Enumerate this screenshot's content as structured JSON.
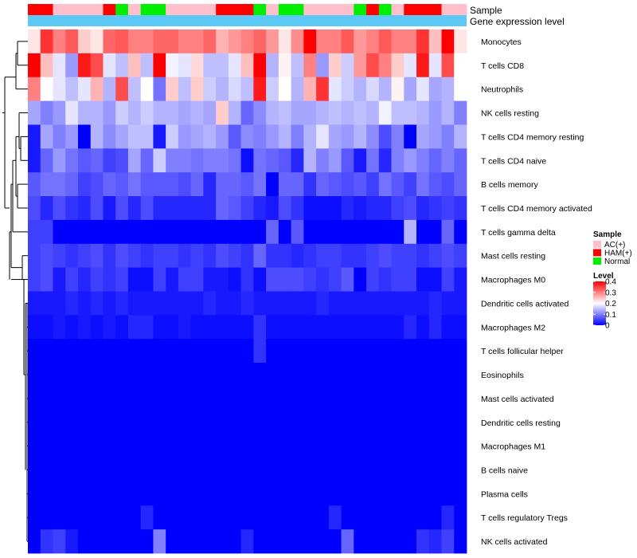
{
  "chart_data": {
    "type": "heatmap",
    "title": "",
    "annotation_labels": {
      "sample": "Sample",
      "expression": "Gene expression level"
    },
    "row_labels": [
      "Monocytes",
      "T cells CD8",
      "Neutrophils",
      "NK cells resting",
      "T cells CD4 memory resting",
      "T cells CD4 naive",
      "B cells memory",
      "T cells CD4 memory activated",
      "T cells gamma delta",
      "Mast cells resting",
      "Macrophages M0",
      "Dendritic cells activated",
      "Macrophages M2",
      "T cells follicular helper",
      "Eosinophils",
      "Mast cells activated",
      "Dendritic cells resting",
      "Macrophages M1",
      "B cells naive",
      "Plasma cells",
      "T cells regulatory  Tregs",
      "NK cells activated"
    ],
    "sample_groups": [
      "HAM(+)",
      "HAM(+)",
      "AC(+)",
      "AC(+)",
      "AC(+)",
      "AC(+)",
      "HAM(+)",
      "Normal",
      "AC(+)",
      "Normal",
      "Normal",
      "AC(+)",
      "AC(+)",
      "AC(+)",
      "AC(+)",
      "HAM(+)",
      "HAM(+)",
      "HAM(+)",
      "Normal",
      "AC(+)",
      "Normal",
      "Normal",
      "AC(+)",
      "AC(+)",
      "AC(+)",
      "AC(+)",
      "Normal",
      "HAM(+)",
      "Normal",
      "AC(+)",
      "HAM(+)",
      "HAM(+)",
      "HAM(+)",
      "AC(+)",
      "AC(+)"
    ],
    "expression_bar_color": "#5bc8f5",
    "values": [
      [
        0.22,
        0.36,
        0.3,
        0.33,
        0.24,
        0.22,
        0.32,
        0.33,
        0.3,
        0.3,
        0.32,
        0.32,
        0.3,
        0.3,
        0.32,
        0.26,
        0.28,
        0.3,
        0.32,
        0.28,
        0.22,
        0.29,
        0.4,
        0.3,
        0.3,
        0.33,
        0.28,
        0.3,
        0.33,
        0.3,
        0.3,
        0.36,
        0.25,
        0.4,
        0.22
      ],
      [
        0.4,
        0.25,
        0.18,
        0.12,
        0.38,
        0.34,
        0.18,
        0.15,
        0.25,
        0.15,
        0.4,
        0.19,
        0.18,
        0.23,
        0.15,
        0.15,
        0.18,
        0.25,
        0.4,
        0.14,
        0.21,
        0.15,
        0.3,
        0.12,
        0.24,
        0.16,
        0.28,
        0.34,
        0.3,
        0.24,
        0.18,
        0.38,
        0.18,
        0.34,
        0.2
      ],
      [
        0.3,
        0.2,
        0.18,
        0.15,
        0.18,
        0.26,
        0.14,
        0.34,
        0.15,
        0.2,
        0.09,
        0.24,
        0.15,
        0.24,
        0.16,
        0.14,
        0.17,
        0.15,
        0.38,
        0.16,
        0.2,
        0.14,
        0.26,
        0.36,
        0.18,
        0.16,
        0.14,
        0.17,
        0.14,
        0.21,
        0.13,
        0.18,
        0.13,
        0.14,
        0.2
      ],
      [
        0.13,
        0.1,
        0.12,
        0.18,
        0.14,
        0.14,
        0.12,
        0.16,
        0.14,
        0.16,
        0.14,
        0.14,
        0.13,
        0.14,
        0.13,
        0.24,
        0.14,
        0.08,
        0.11,
        0.14,
        0.15,
        0.13,
        0.13,
        0.14,
        0.15,
        0.14,
        0.15,
        0.14,
        0.19,
        0.15,
        0.15,
        0.14,
        0.12,
        0.14,
        0.1
      ],
      [
        0.02,
        0.13,
        0.1,
        0.12,
        0.0,
        0.14,
        0.11,
        0.13,
        0.15,
        0.15,
        0.02,
        0.16,
        0.12,
        0.13,
        0.14,
        0.12,
        0.07,
        0.11,
        0.1,
        0.12,
        0.14,
        0.1,
        0.14,
        0.18,
        0.13,
        0.12,
        0.14,
        0.11,
        0.06,
        0.1,
        0.0,
        0.13,
        0.12,
        0.1,
        0.14
      ],
      [
        0.02,
        0.08,
        0.12,
        0.09,
        0.07,
        0.08,
        0.05,
        0.06,
        0.13,
        0.08,
        0.16,
        0.1,
        0.1,
        0.09,
        0.1,
        0.1,
        0.09,
        0.01,
        0.09,
        0.08,
        0.07,
        0.03,
        0.14,
        0.1,
        0.12,
        0.07,
        0.02,
        0.09,
        0.03,
        0.1,
        0.12,
        0.1,
        0.08,
        0.1,
        0.08
      ],
      [
        0.07,
        0.09,
        0.09,
        0.08,
        0.05,
        0.06,
        0.08,
        0.07,
        0.09,
        0.07,
        0.07,
        0.07,
        0.06,
        0.08,
        0.03,
        0.08,
        0.08,
        0.07,
        0.09,
        0.0,
        0.08,
        0.08,
        0.04,
        0.08,
        0.07,
        0.06,
        0.07,
        0.05,
        0.09,
        0.07,
        0.05,
        0.09,
        0.07,
        0.06,
        0.08
      ],
      [
        0.06,
        0.03,
        0.06,
        0.04,
        0.03,
        0.06,
        0.02,
        0.06,
        0.03,
        0.06,
        0.03,
        0.03,
        0.03,
        0.03,
        0.03,
        0.08,
        0.07,
        0.05,
        0.03,
        0.02,
        0.06,
        0.04,
        0.01,
        0.01,
        0.01,
        0.03,
        0.02,
        0.03,
        0.03,
        0.05,
        0.06,
        0.03,
        0.04,
        0.05,
        0.04
      ],
      [
        0.05,
        0.05,
        0.0,
        0.0,
        0.0,
        0.0,
        0.0,
        0.0,
        0.0,
        0.0,
        0.0,
        0.0,
        0.0,
        0.0,
        0.0,
        0.0,
        0.0,
        0.0,
        0.0,
        0.08,
        0.0,
        0.07,
        0.0,
        0.0,
        0.0,
        0.0,
        0.0,
        0.0,
        0.0,
        0.0,
        0.14,
        0.0,
        0.0,
        0.08,
        0.0
      ],
      [
        0.05,
        0.06,
        0.05,
        0.04,
        0.05,
        0.06,
        0.04,
        0.06,
        0.05,
        0.04,
        0.05,
        0.05,
        0.04,
        0.05,
        0.04,
        0.06,
        0.05,
        0.04,
        0.08,
        0.04,
        0.04,
        0.03,
        0.04,
        0.05,
        0.05,
        0.04,
        0.04,
        0.05,
        0.06,
        0.05,
        0.05,
        0.04,
        0.05,
        0.06,
        0.05
      ],
      [
        0.05,
        0.06,
        0.02,
        0.05,
        0.03,
        0.05,
        0.04,
        0.05,
        0.01,
        0.01,
        0.05,
        0.02,
        0.05,
        0.05,
        0.02,
        0.02,
        0.01,
        0.04,
        0.01,
        0.06,
        0.06,
        0.06,
        0.05,
        0.04,
        0.05,
        0.07,
        0.0,
        0.05,
        0.04,
        0.05,
        0.05,
        0.01,
        0.01,
        0.05,
        0.02
      ],
      [
        0.02,
        0.02,
        0.02,
        0.03,
        0.02,
        0.03,
        0.02,
        0.03,
        0.02,
        0.02,
        0.02,
        0.02,
        0.02,
        0.02,
        0.03,
        0.02,
        0.02,
        0.03,
        0.02,
        0.02,
        0.02,
        0.02,
        0.02,
        0.03,
        0.02,
        0.02,
        0.02,
        0.02,
        0.02,
        0.02,
        0.02,
        0.02,
        0.03,
        0.02,
        0.02
      ],
      [
        0.01,
        0.01,
        0.02,
        0.01,
        0.02,
        0.01,
        0.02,
        0.01,
        0.03,
        0.03,
        0.01,
        0.01,
        0.02,
        0.01,
        0.01,
        0.01,
        0.01,
        0.01,
        0.04,
        0.01,
        0.01,
        0.01,
        0.01,
        0.01,
        0.01,
        0.01,
        0.01,
        0.01,
        0.01,
        0.01,
        0.03,
        0.01,
        0.03,
        0.01,
        0.01
      ],
      [
        0.0,
        0.0,
        0.0,
        0.0,
        0.0,
        0.0,
        0.0,
        0.0,
        0.0,
        0.0,
        0.0,
        0.0,
        0.0,
        0.0,
        0.0,
        0.0,
        0.0,
        0.0,
        0.04,
        0.0,
        0.0,
        0.0,
        0.0,
        0.0,
        0.0,
        0.0,
        0.0,
        0.0,
        0.0,
        0.0,
        0.0,
        0.0,
        0.0,
        0.0,
        0.0
      ],
      [
        0.0,
        0.0,
        0.0,
        0.0,
        0.0,
        0.0,
        0.0,
        0.0,
        0.0,
        0.0,
        0.0,
        0.0,
        0.0,
        0.0,
        0.0,
        0.0,
        0.0,
        0.0,
        0.0,
        0.0,
        0.0,
        0.0,
        0.0,
        0.0,
        0.0,
        0.0,
        0.0,
        0.0,
        0.0,
        0.0,
        0.0,
        0.0,
        0.0,
        0.0,
        0.0
      ],
      [
        0.0,
        0.0,
        0.0,
        0.0,
        0.0,
        0.0,
        0.0,
        0.0,
        0.0,
        0.0,
        0.0,
        0.0,
        0.0,
        0.0,
        0.0,
        0.0,
        0.0,
        0.0,
        0.0,
        0.0,
        0.0,
        0.0,
        0.0,
        0.0,
        0.0,
        0.0,
        0.0,
        0.0,
        0.0,
        0.0,
        0.0,
        0.0,
        0.0,
        0.0,
        0.0
      ],
      [
        0.0,
        0.0,
        0.0,
        0.0,
        0.0,
        0.0,
        0.0,
        0.0,
        0.0,
        0.0,
        0.0,
        0.0,
        0.0,
        0.0,
        0.0,
        0.0,
        0.0,
        0.0,
        0.0,
        0.0,
        0.0,
        0.0,
        0.0,
        0.0,
        0.0,
        0.0,
        0.0,
        0.0,
        0.0,
        0.0,
        0.0,
        0.0,
        0.0,
        0.0,
        0.0
      ],
      [
        0.0,
        0.0,
        0.0,
        0.0,
        0.0,
        0.0,
        0.0,
        0.0,
        0.0,
        0.0,
        0.0,
        0.0,
        0.0,
        0.0,
        0.0,
        0.0,
        0.0,
        0.0,
        0.0,
        0.0,
        0.0,
        0.0,
        0.0,
        0.0,
        0.0,
        0.0,
        0.0,
        0.0,
        0.0,
        0.0,
        0.0,
        0.0,
        0.0,
        0.0,
        0.0
      ],
      [
        0.0,
        0.0,
        0.0,
        0.0,
        0.0,
        0.0,
        0.0,
        0.0,
        0.0,
        0.0,
        0.0,
        0.0,
        0.0,
        0.0,
        0.0,
        0.0,
        0.0,
        0.0,
        0.0,
        0.0,
        0.0,
        0.0,
        0.0,
        0.0,
        0.0,
        0.0,
        0.0,
        0.0,
        0.0,
        0.0,
        0.0,
        0.0,
        0.0,
        0.0,
        0.0
      ],
      [
        0.0,
        0.0,
        0.0,
        0.0,
        0.0,
        0.0,
        0.0,
        0.0,
        0.0,
        0.0,
        0.0,
        0.0,
        0.0,
        0.0,
        0.0,
        0.0,
        0.0,
        0.0,
        0.0,
        0.0,
        0.0,
        0.0,
        0.0,
        0.0,
        0.0,
        0.0,
        0.0,
        0.0,
        0.0,
        0.0,
        0.0,
        0.0,
        0.0,
        0.0,
        0.0
      ],
      [
        0.0,
        0.0,
        0.0,
        0.0,
        0.0,
        0.0,
        0.0,
        0.0,
        0.0,
        0.03,
        0.0,
        0.0,
        0.0,
        0.0,
        0.0,
        0.0,
        0.0,
        0.0,
        0.0,
        0.0,
        0.0,
        0.0,
        0.0,
        0.0,
        0.03,
        0.0,
        0.0,
        0.0,
        0.0,
        0.0,
        0.0,
        0.0,
        0.0,
        0.03,
        0.0
      ],
      [
        0.0,
        0.04,
        0.05,
        0.02,
        0.0,
        0.0,
        0.0,
        0.0,
        0.0,
        0.0,
        0.1,
        0.0,
        0.0,
        0.0,
        0.0,
        0.0,
        0.0,
        0.03,
        0.0,
        0.0,
        0.0,
        0.0,
        0.0,
        0.0,
        0.0,
        0.08,
        0.0,
        0.0,
        0.0,
        0.0,
        0.0,
        0.04,
        0.03,
        0.05,
        0.0
      ]
    ],
    "legend_sample": {
      "title": "Sample",
      "entries": [
        {
          "label": "AC(+)",
          "color": "#ffc0cb"
        },
        {
          "label": "HAM(+)",
          "color": "#ff0000"
        },
        {
          "label": "Normal",
          "color": "#00ee00"
        }
      ]
    },
    "legend_level": {
      "title": "Level",
      "ticks": [
        "0.4",
        "0.3",
        "0.2",
        "0.1",
        "0"
      ],
      "tick_values": [
        0.4,
        0.3,
        0.2,
        0.1,
        0
      ],
      "range": [
        0,
        0.4
      ]
    },
    "color_scale": {
      "low": "#0000ff",
      "mid": "#ffffff",
      "high": "#ff0000",
      "mid_value": 0.2
    }
  }
}
